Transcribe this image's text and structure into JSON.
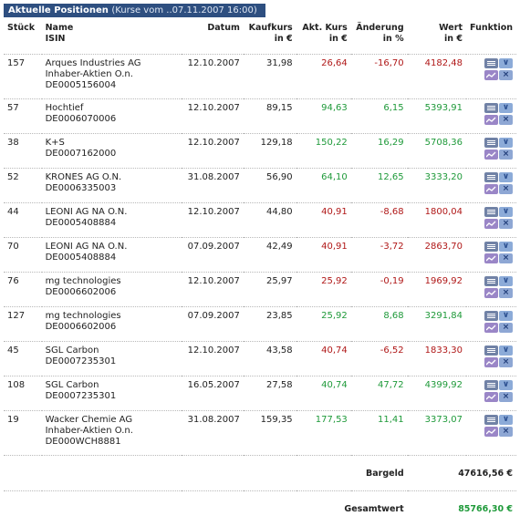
{
  "header": {
    "title": "Aktuelle Positionen",
    "subtitle": "(Kurse vom ..07.11.2007 16:00)"
  },
  "columns": {
    "stueck": "Stück",
    "name": "Name",
    "isin": "ISIN",
    "datum": "Datum",
    "kaufkurs": "Kaufkurs",
    "kaufkurs_unit": "in €",
    "aktkurs": "Akt. Kurs",
    "aktkurs_unit": "in €",
    "aenderung": "Änderung",
    "aenderung_unit": "in %",
    "wert": "Wert",
    "wert_unit": "in €",
    "funktion": "Funktion"
  },
  "rows": [
    {
      "stueck": "157",
      "name1": "Arques Industries AG",
      "name2": "Inhaber-Aktien O.n.",
      "isin": "DE0005156004",
      "datum": "12.10.2007",
      "kaufkurs": "31,98",
      "aktkurs": "26,64",
      "aenderung": "-16,70",
      "wert": "4182,48",
      "status": "red"
    },
    {
      "stueck": "57",
      "name1": "Hochtief",
      "name2": "",
      "isin": "DE0006070006",
      "datum": "12.10.2007",
      "kaufkurs": "89,15",
      "aktkurs": "94,63",
      "aenderung": "6,15",
      "wert": "5393,91",
      "status": "green"
    },
    {
      "stueck": "38",
      "name1": "K+S",
      "name2": "",
      "isin": "DE0007162000",
      "datum": "12.10.2007",
      "kaufkurs": "129,18",
      "aktkurs": "150,22",
      "aenderung": "16,29",
      "wert": "5708,36",
      "status": "green"
    },
    {
      "stueck": "52",
      "name1": "KRONES AG O.N.",
      "name2": "",
      "isin": "DE0006335003",
      "datum": "31.08.2007",
      "kaufkurs": "56,90",
      "aktkurs": "64,10",
      "aenderung": "12,65",
      "wert": "3333,20",
      "status": "green"
    },
    {
      "stueck": "44",
      "name1": "LEONI AG NA O.N.",
      "name2": "",
      "isin": "DE0005408884",
      "datum": "12.10.2007",
      "kaufkurs": "44,80",
      "aktkurs": "40,91",
      "aenderung": "-8,68",
      "wert": "1800,04",
      "status": "red"
    },
    {
      "stueck": "70",
      "name1": "LEONI AG NA O.N.",
      "name2": "",
      "isin": "DE0005408884",
      "datum": "07.09.2007",
      "kaufkurs": "42,49",
      "aktkurs": "40,91",
      "aenderung": "-3,72",
      "wert": "2863,70",
      "status": "red"
    },
    {
      "stueck": "76",
      "name1": "mg technologies",
      "name2": "",
      "isin": "DE0006602006",
      "datum": "12.10.2007",
      "kaufkurs": "25,97",
      "aktkurs": "25,92",
      "aenderung": "-0,19",
      "wert": "1969,92",
      "status": "red"
    },
    {
      "stueck": "127",
      "name1": "mg technologies",
      "name2": "",
      "isin": "DE0006602006",
      "datum": "07.09.2007",
      "kaufkurs": "23,85",
      "aktkurs": "25,92",
      "aenderung": "8,68",
      "wert": "3291,84",
      "status": "green"
    },
    {
      "stueck": "45",
      "name1": "SGL Carbon",
      "name2": "",
      "isin": "DE0007235301",
      "datum": "12.10.2007",
      "kaufkurs": "43,58",
      "aktkurs": "40,74",
      "aenderung": "-6,52",
      "wert": "1833,30",
      "status": "red"
    },
    {
      "stueck": "108",
      "name1": "SGL Carbon",
      "name2": "",
      "isin": "DE0007235301",
      "datum": "16.05.2007",
      "kaufkurs": "27,58",
      "aktkurs": "40,74",
      "aenderung": "47,72",
      "wert": "4399,92",
      "status": "green"
    },
    {
      "stueck": "19",
      "name1": "Wacker Chemie AG",
      "name2": "Inhaber-Aktien O.n.",
      "isin": "DE000WCH8881",
      "datum": "31.08.2007",
      "kaufkurs": "159,35",
      "aktkurs": "177,53",
      "aenderung": "11,41",
      "wert": "3373,07",
      "status": "green"
    }
  ],
  "summary": {
    "bargeld_label": "Bargeld",
    "bargeld_value": "47616,56 €",
    "gesamt_label": "Gesamtwert",
    "gesamt_value": "85766,30 €"
  },
  "colors": {
    "header_bg": "#2e4f80",
    "positive": "#1f9a3a",
    "negative": "#b01818"
  },
  "icons": [
    "list-icon",
    "download-icon",
    "chart-icon",
    "close-icon"
  ]
}
